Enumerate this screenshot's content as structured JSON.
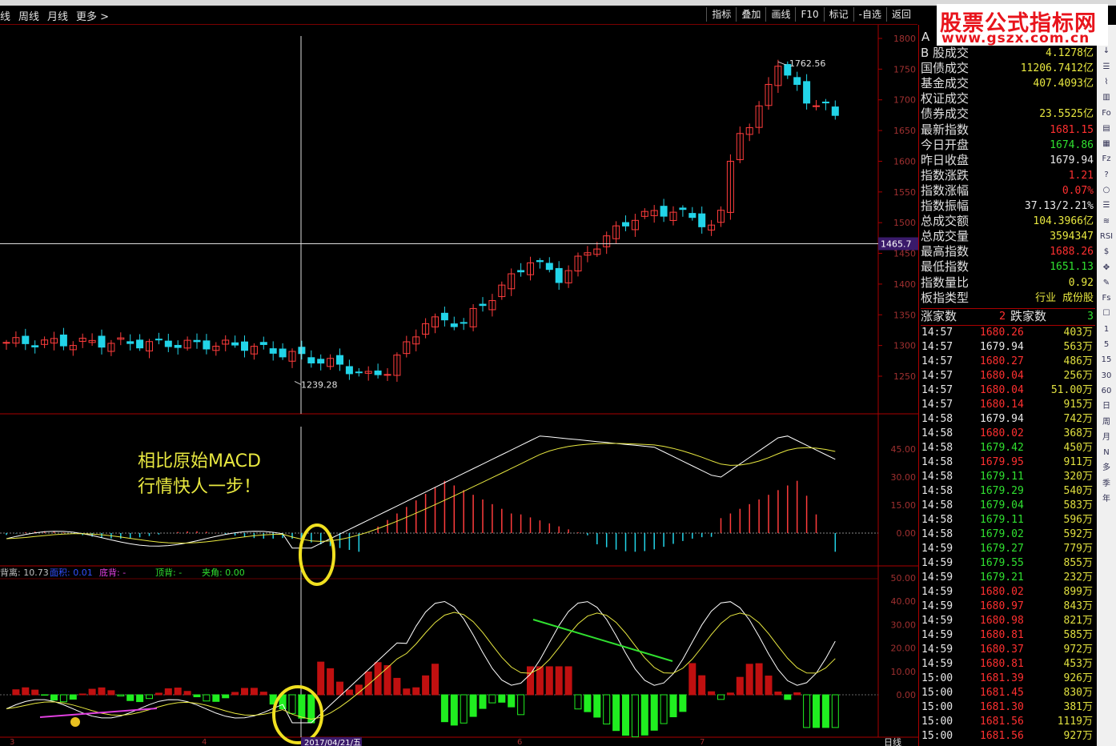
{
  "toolbar": {
    "left_items": [
      "线",
      "周线",
      "月线",
      "更多 >"
    ],
    "right_items": [
      "指标",
      "叠加",
      "画线",
      "F10",
      "标记",
      "-自选",
      "返回"
    ]
  },
  "logo": {
    "line1": "股票公式指标网",
    "line2": "www.gszx.com.cn"
  },
  "main_chart": {
    "price_axis": [
      "1800",
      "1750",
      "1700",
      "1650",
      "1600",
      "1550",
      "1500",
      "1450",
      "1400",
      "1350",
      "1300",
      "1250"
    ],
    "high_label": "1762.56",
    "low_label": "1239.28",
    "cursor_price": "1465.7",
    "date_label": "2017/04/21/五",
    "month_labels": [
      "3",
      "4",
      "6",
      "7"
    ],
    "period_label": "日线"
  },
  "macd_panel": {
    "axis": [
      "45.00",
      "30.00",
      "15.00",
      "0.00"
    ],
    "annotation_line1": "相比原始MACD",
    "annotation_line2": "行情快人一步！"
  },
  "indicator_panel": {
    "header": [
      {
        "text": "背离: 10.73",
        "color": "#c0c0c0"
      },
      {
        "text": "面积: 0.01",
        "color": "#3050ff"
      },
      {
        "text": "底背: -",
        "color": "#e040e0"
      },
      {
        "text": "顶背: -",
        "color": "#30e030"
      },
      {
        "text": "夹角: 0.00",
        "color": "#30e030"
      }
    ],
    "axis": [
      "50.00",
      "40.00",
      "30.00",
      "20.00",
      "10.00",
      "0.00"
    ]
  },
  "info": {
    "header_a": "A",
    "rows": [
      {
        "k": "B 股成交",
        "v": "4.1278亿",
        "c": "yellow"
      },
      {
        "k": "国债成交",
        "v": "11206.7412亿",
        "c": "yellow"
      },
      {
        "k": "基金成交",
        "v": "407.4093亿",
        "c": "yellow"
      },
      {
        "k": "权证成交",
        "v": "",
        "c": "yellow"
      },
      {
        "k": "债券成交",
        "v": "23.5525亿",
        "c": "yellow"
      },
      {
        "k": "最新指数",
        "v": "1681.15",
        "c": "red"
      },
      {
        "k": "今日开盘",
        "v": "1674.86",
        "c": "green"
      },
      {
        "k": "昨日收盘",
        "v": "1679.94",
        "c": "white"
      },
      {
        "k": "指数涨跌",
        "v": "1.21",
        "c": "red"
      },
      {
        "k": "指数涨幅",
        "v": "0.07%",
        "c": "red"
      },
      {
        "k": "指数振幅",
        "v": "37.13/2.21%",
        "c": "white"
      },
      {
        "k": "总成交额",
        "v": "104.3966亿",
        "c": "yellow"
      },
      {
        "k": "总成交量",
        "v": "3594347",
        "c": "yellow"
      },
      {
        "k": "最高指数",
        "v": "1688.26",
        "c": "red"
      },
      {
        "k": "最低指数",
        "v": "1651.13",
        "c": "green"
      },
      {
        "k": "指数量比",
        "v": "0.92",
        "c": "yellow"
      },
      {
        "k": "板指类型",
        "v": "行业 成份股",
        "c": "yellow"
      }
    ],
    "up_label": "涨家数",
    "up_value": "2",
    "down_label": "跌家数",
    "down_value": "3"
  },
  "ticks": [
    {
      "t": "14:57",
      "p": "1680.26",
      "c": "red",
      "v": "403万"
    },
    {
      "t": "14:57",
      "p": "1679.94",
      "c": "white",
      "v": "563万"
    },
    {
      "t": "14:57",
      "p": "1680.27",
      "c": "red",
      "v": "486万"
    },
    {
      "t": "14:57",
      "p": "1680.04",
      "c": "red",
      "v": "256万"
    },
    {
      "t": "14:57",
      "p": "1680.04",
      "c": "red",
      "v": "51.00万"
    },
    {
      "t": "14:57",
      "p": "1680.14",
      "c": "red",
      "v": "915万"
    },
    {
      "t": "14:58",
      "p": "1679.94",
      "c": "white",
      "v": "742万"
    },
    {
      "t": "14:58",
      "p": "1680.02",
      "c": "red",
      "v": "368万"
    },
    {
      "t": "14:58",
      "p": "1679.42",
      "c": "green",
      "v": "450万"
    },
    {
      "t": "14:58",
      "p": "1679.95",
      "c": "red",
      "v": "911万"
    },
    {
      "t": "14:58",
      "p": "1679.11",
      "c": "green",
      "v": "320万"
    },
    {
      "t": "14:58",
      "p": "1679.29",
      "c": "green",
      "v": "540万"
    },
    {
      "t": "14:58",
      "p": "1679.04",
      "c": "green",
      "v": "583万"
    },
    {
      "t": "14:58",
      "p": "1679.11",
      "c": "green",
      "v": "596万"
    },
    {
      "t": "14:58",
      "p": "1679.02",
      "c": "green",
      "v": "592万"
    },
    {
      "t": "14:59",
      "p": "1679.27",
      "c": "green",
      "v": "779万"
    },
    {
      "t": "14:59",
      "p": "1679.55",
      "c": "green",
      "v": "855万"
    },
    {
      "t": "14:59",
      "p": "1679.21",
      "c": "green",
      "v": "232万"
    },
    {
      "t": "14:59",
      "p": "1680.02",
      "c": "red",
      "v": "899万"
    },
    {
      "t": "14:59",
      "p": "1680.97",
      "c": "red",
      "v": "843万"
    },
    {
      "t": "14:59",
      "p": "1680.98",
      "c": "red",
      "v": "821万"
    },
    {
      "t": "14:59",
      "p": "1680.81",
      "c": "red",
      "v": "585万"
    },
    {
      "t": "14:59",
      "p": "1680.37",
      "c": "red",
      "v": "972万"
    },
    {
      "t": "14:59",
      "p": "1680.81",
      "c": "red",
      "v": "453万"
    },
    {
      "t": "15:00",
      "p": "1681.39",
      "c": "red",
      "v": "926万"
    },
    {
      "t": "15:00",
      "p": "1681.45",
      "c": "red",
      "v": "830万"
    },
    {
      "t": "15:00",
      "p": "1681.30",
      "c": "red",
      "v": "381万"
    },
    {
      "t": "15:00",
      "p": "1681.56",
      "c": "red",
      "v": "1119万"
    },
    {
      "t": "15:00",
      "p": "1681.56",
      "c": "red",
      "v": "927万"
    }
  ],
  "iconbar": [
    "↓",
    "↓",
    "☰",
    "⌇",
    "▥",
    "Fo",
    "▤",
    "▦",
    "Fz",
    "?",
    "○",
    "☰",
    "≋",
    "RSI",
    "$",
    "✥",
    "✎",
    "Fs",
    "☐",
    "1",
    "5",
    "15",
    "30",
    "60",
    "日",
    "周",
    "月",
    "N",
    "多",
    "季",
    "年"
  ],
  "colors": {
    "up": "#ff3c3c",
    "down": "#22d4e8",
    "grid_red": "#8b0000",
    "yellow": "#e8e840"
  }
}
